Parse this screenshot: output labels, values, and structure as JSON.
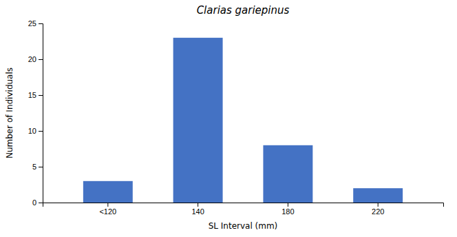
{
  "chart_data": {
    "type": "bar",
    "title": "Clarias gariepinus",
    "xlabel": "SL Interval (mm)",
    "ylabel": "Number of Individuals",
    "categories": [
      "<120",
      "140",
      "180",
      "220"
    ],
    "values": [
      3,
      23,
      8,
      2
    ],
    "color": "#4472C4",
    "ylim": [
      0,
      25
    ],
    "yticks": [
      0,
      5,
      10,
      15,
      20,
      25
    ],
    "grid": false
  }
}
